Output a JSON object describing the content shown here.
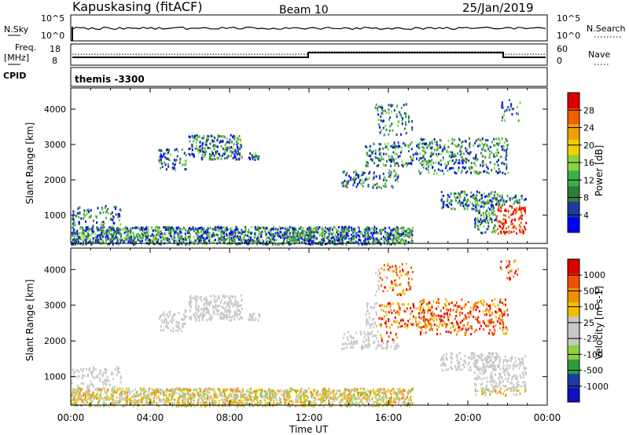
{
  "header": {
    "station": "Kapuskasing (fitACF)",
    "beam": "Beam 10",
    "date": "25/Jan/2019"
  },
  "panels": {
    "nsky_label": "N.Sky",
    "nsearch_label": "N.Search",
    "freq_label_1": "Freq.",
    "freq_label_2": "[MHz]",
    "nave_label": "Nave",
    "cpid_label": "CPID",
    "cpid_text": "themis -3300",
    "nsky_ticks": [
      "10^5",
      "10^0"
    ],
    "nsearch_ticks": [
      "10^5",
      "10^0"
    ],
    "freq_ticks": [
      "18",
      "8"
    ],
    "nave_ticks": [
      "60",
      "0"
    ]
  },
  "colors": {
    "power": [
      "#0000ff",
      "#1e3c9e",
      "#2e7d3c",
      "#3fae48",
      "#8cd23c",
      "#f0d000",
      "#f0a000",
      "#f06000",
      "#e00000"
    ],
    "velocity": [
      "#e00000",
      "#f05000",
      "#f09000",
      "#f0c000",
      "#c8c8c8",
      "#c8c8c8",
      "#90d040",
      "#2e9d3c",
      "#1e3c9e",
      "#1010c0"
    ]
  },
  "chart_data": [
    {
      "type": "heatmap",
      "title": "Power",
      "xlabel": "",
      "ylabel": "Slant Range [km]",
      "colorbar_label": "Power [dB]",
      "colorbar_ticks": [
        "28",
        "24",
        "20",
        "16",
        "12",
        "8",
        "4"
      ],
      "xticks": [
        "00:00",
        "04:00",
        "08:00",
        "12:00",
        "16:00",
        "20:00",
        "00:00"
      ],
      "yticks": [
        "4000",
        "3000",
        "2000",
        "1000"
      ],
      "ylim": [
        200,
        4600
      ],
      "xlim": [
        0,
        24
      ]
    },
    {
      "type": "heatmap",
      "title": "Velocity",
      "xlabel": "Time UT",
      "ylabel": "Slant Range [km]",
      "colorbar_label": "Velocity [m s-1]",
      "colorbar_ticks": [
        "1000",
        "500",
        "100",
        "25",
        "-25",
        "-100",
        "-500",
        "-1000"
      ],
      "xticks": [
        "00:00",
        "04:00",
        "08:00",
        "12:00",
        "16:00",
        "20:00",
        "00:00"
      ],
      "yticks": [
        "4000",
        "3000",
        "2000",
        "1000"
      ],
      "ylim": [
        200,
        4600
      ],
      "xlim": [
        0,
        24
      ]
    }
  ]
}
